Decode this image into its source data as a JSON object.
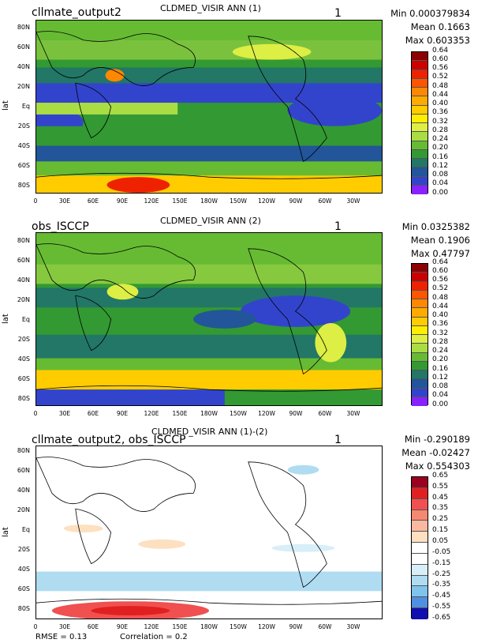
{
  "panels": [
    {
      "left_title": "cllmate_output2",
      "center_title": "CLDMED_VISIR ANN (1)",
      "number": "1",
      "min": "Min 0.000379834",
      "mean": "Mean 0.1663",
      "max": "Max 0.603353",
      "ylabel": "lat",
      "colorbar_levels": [
        "0.64",
        "0.60",
        "0.56",
        "0.52",
        "0.48",
        "0.44",
        "0.40",
        "0.36",
        "0.32",
        "0.28",
        "0.24",
        "0.20",
        "0.16",
        "0.12",
        "0.08",
        "0.04",
        "0.00"
      ]
    },
    {
      "left_title": "obs_ISCCP",
      "center_title": "CLDMED_VISIR ANN (2)",
      "number": "1",
      "min": "Min 0.0325382",
      "mean": "Mean 0.1906",
      "max": "Max 0.47797",
      "ylabel": "lat",
      "colorbar_levels": [
        "0.64",
        "0.60",
        "0.56",
        "0.52",
        "0.48",
        "0.44",
        "0.40",
        "0.36",
        "0.32",
        "0.28",
        "0.24",
        "0.20",
        "0.16",
        "0.12",
        "0.08",
        "0.04",
        "0.00"
      ]
    },
    {
      "left_title": "cllmate_output2, obs_ISCCP",
      "center_title": "CLDMED_VISIR ANN (1)-(2)",
      "number": "1",
      "min": "Min -0.290189",
      "mean": "Mean -0.02427",
      "max": "Max 0.554303",
      "ylabel": "lat",
      "colorbar_levels": [
        "0.65",
        "0.55",
        "0.45",
        "0.35",
        "0.25",
        "0.15",
        "0.05",
        "-0.05",
        "-0.15",
        "-0.25",
        "-0.35",
        "-0.45",
        "-0.55",
        "-0.65"
      ]
    }
  ],
  "lat_ticks": [
    "80N",
    "60N",
    "40N",
    "20N",
    "Eq",
    "20S",
    "40S",
    "60S",
    "80S"
  ],
  "lon_ticks": [
    "0",
    "30E",
    "60E",
    "90E",
    "120E",
    "150E",
    "180W",
    "150W",
    "120W",
    "90W",
    "60W",
    "30W"
  ],
  "footer": {
    "rmse": "RMSE = 0.13",
    "correlation": "Correlation = 0.2"
  },
  "colors": {
    "abs_scale": [
      "#8b0000",
      "#cc0000",
      "#ee2200",
      "#ff5500",
      "#ff8800",
      "#ffaa00",
      "#ffcc00",
      "#ffee00",
      "#ddee44",
      "#aadd44",
      "#66bb33",
      "#339933",
      "#227766",
      "#225599",
      "#3344cc",
      "#5522ee",
      "#8822ff"
    ],
    "diff_scale": [
      "#9b0020",
      "#e02020",
      "#f05050",
      "#f58870",
      "#fbb8a0",
      "#fde0c0",
      "#ffffff",
      "#ffffff",
      "#d8eef8",
      "#b0dcf2",
      "#80c4ee",
      "#5090e0",
      "#2050d8",
      "#1010b0"
    ]
  }
}
